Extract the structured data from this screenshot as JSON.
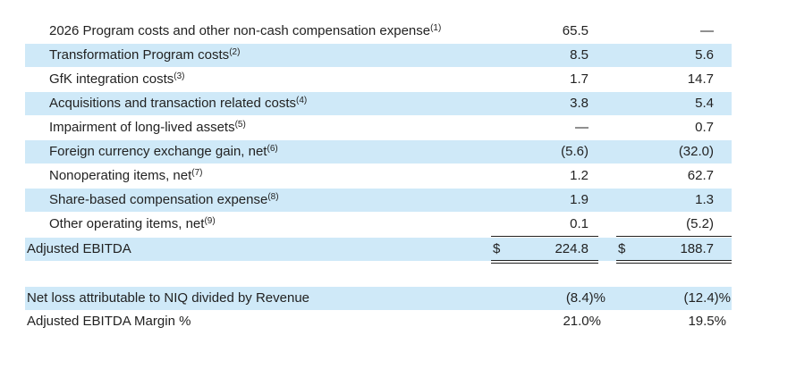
{
  "rows": [
    {
      "label": "2026 Program costs and other non-cash compensation expense",
      "note": "(1)",
      "v1": "65.5",
      "v2": "—"
    },
    {
      "label": "Transformation Program costs",
      "note": "(2)",
      "v1": "8.5",
      "v2": "5.6"
    },
    {
      "label": "GfK integration costs",
      "note": "(3)",
      "v1": "1.7",
      "v2": "14.7"
    },
    {
      "label": "Acquisitions and transaction related costs",
      "note": "(4)",
      "v1": "3.8",
      "v2": "5.4"
    },
    {
      "label": "Impairment of long-lived assets",
      "note": "(5)",
      "v1": "—",
      "v2": "0.7"
    },
    {
      "label": "Foreign currency exchange gain, net",
      "note": "(6)",
      "v1": "(5.6)",
      "v2": "(32.0)"
    },
    {
      "label": "Nonoperating items, net",
      "note": "(7)",
      "v1": "1.2",
      "v2": "62.7"
    },
    {
      "label": "Share-based compensation expense",
      "note": "(8)",
      "v1": "1.9",
      "v2": "1.3"
    },
    {
      "label": "Other operating items, net",
      "note": "(9)",
      "v1": "0.1",
      "v2": "(5.2)"
    }
  ],
  "total": {
    "label": "Adjusted EBITDA",
    "currency": "$",
    "v1": "224.8",
    "v2": "188.7"
  },
  "ratios": [
    {
      "label": "Net loss attributable to NIQ divided by Revenue",
      "v1": "(8.4)%",
      "v2": "(12.4)%"
    },
    {
      "label": "Adjusted EBITDA Margin %",
      "v1": "21.0%",
      "v2": "19.5%"
    }
  ],
  "colors": {
    "band": "#cfe9f8",
    "text": "#222222"
  }
}
